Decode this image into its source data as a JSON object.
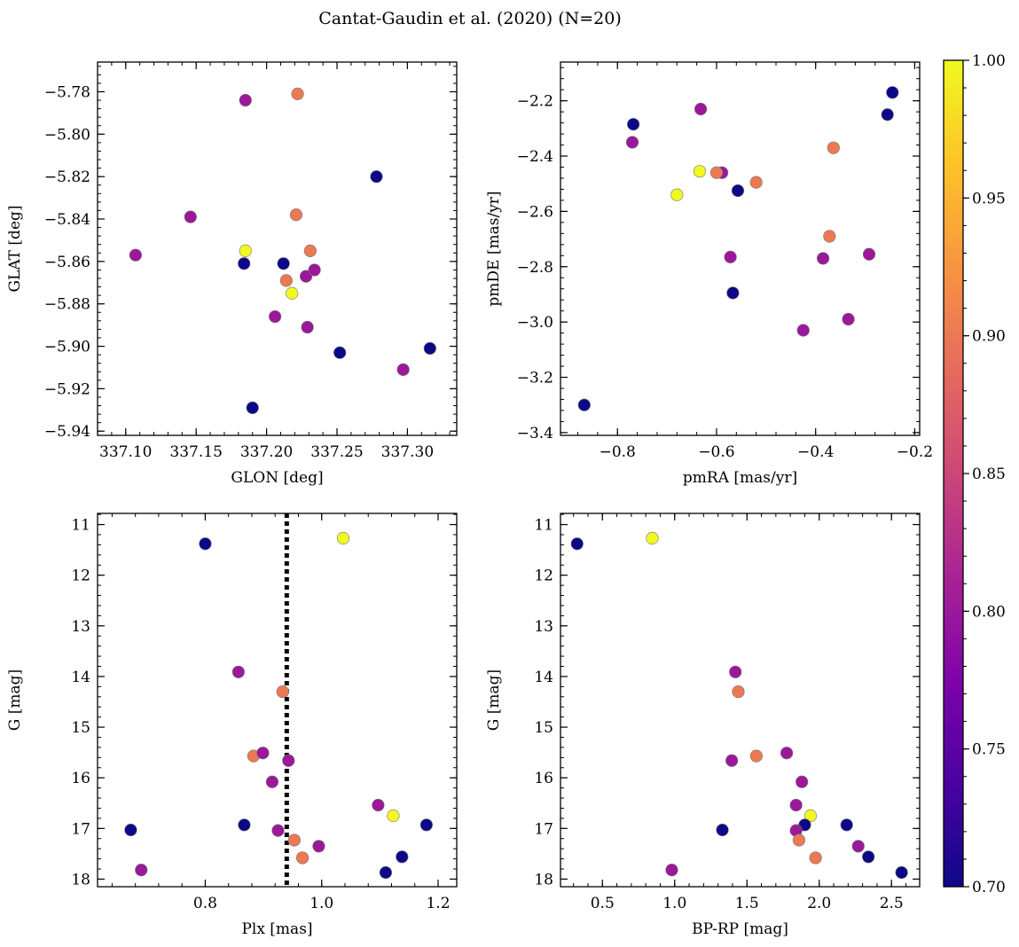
{
  "figure": {
    "suptitle": "Cantat-Gaudin et al. (2020) (N=20)"
  },
  "colorbar": {
    "cmap": "plasma",
    "vmin": 0.7,
    "vmax": 1.0,
    "ticks": [
      0.7,
      0.75,
      0.8,
      0.85,
      0.9,
      0.95,
      1.0
    ],
    "tick_labels": [
      "0.70",
      "0.75",
      "0.80",
      "0.85",
      "0.90",
      "0.95",
      "1.00"
    ]
  },
  "chart_data": [
    {
      "type": "scatter",
      "panel": "top-left",
      "xlabel": "GLON [deg]",
      "ylabel": "GLAT [deg]",
      "xlim": [
        337.08,
        337.335
      ],
      "ylim": [
        -5.942,
        -5.766
      ],
      "xticks": [
        337.1,
        337.15,
        337.2,
        337.25,
        337.3
      ],
      "xtick_labels": [
        "337.10",
        "337.15",
        "337.20",
        "337.25",
        "337.30"
      ],
      "yticks": [
        -5.94,
        -5.92,
        -5.9,
        -5.88,
        -5.86,
        -5.84,
        -5.82,
        -5.8,
        -5.78
      ],
      "ytick_labels": [
        "−5.94",
        "−5.92",
        "−5.90",
        "−5.88",
        "−5.86",
        "−5.84",
        "−5.82",
        "−5.80",
        "−5.78"
      ],
      "points": [
        {
          "x": 337.107,
          "y": -5.857,
          "c": 0.8
        },
        {
          "x": 337.146,
          "y": -5.839,
          "c": 0.8
        },
        {
          "x": 337.185,
          "y": -5.784,
          "c": 0.8
        },
        {
          "x": 337.185,
          "y": -5.855,
          "c": 1.0
        },
        {
          "x": 337.184,
          "y": -5.861,
          "c": 0.7
        },
        {
          "x": 337.19,
          "y": -5.929,
          "c": 0.7
        },
        {
          "x": 337.206,
          "y": -5.886,
          "c": 0.8
        },
        {
          "x": 337.212,
          "y": -5.861,
          "c": 0.7
        },
        {
          "x": 337.214,
          "y": -5.869,
          "c": 0.9
        },
        {
          "x": 337.218,
          "y": -5.875,
          "c": 1.0
        },
        {
          "x": 337.222,
          "y": -5.781,
          "c": 0.9
        },
        {
          "x": 337.221,
          "y": -5.838,
          "c": 0.9
        },
        {
          "x": 337.228,
          "y": -5.867,
          "c": 0.8
        },
        {
          "x": 337.231,
          "y": -5.855,
          "c": 0.9
        },
        {
          "x": 337.234,
          "y": -5.864,
          "c": 0.8
        },
        {
          "x": 337.229,
          "y": -5.891,
          "c": 0.8
        },
        {
          "x": 337.252,
          "y": -5.903,
          "c": 0.7
        },
        {
          "x": 337.278,
          "y": -5.82,
          "c": 0.7
        },
        {
          "x": 337.297,
          "y": -5.911,
          "c": 0.8
        },
        {
          "x": 337.316,
          "y": -5.901,
          "c": 0.7
        }
      ]
    },
    {
      "type": "scatter",
      "panel": "top-right",
      "xlabel": "pmRA [mas/yr]",
      "ylabel": "pmDE [mas/yr]",
      "xlim": [
        -0.915,
        -0.19
      ],
      "ylim": [
        -3.41,
        -2.06
      ],
      "xticks": [
        -0.8,
        -0.6,
        -0.4,
        -0.2
      ],
      "xtick_labels": [
        "−0.8",
        "−0.6",
        "−0.4",
        "−0.2"
      ],
      "yticks": [
        -3.4,
        -3.2,
        -3.0,
        -2.8,
        -2.6,
        -2.4,
        -2.2
      ],
      "ytick_labels": [
        "−3.4",
        "−3.2",
        "−3.0",
        "−2.8",
        "−2.6",
        "−2.4",
        "−2.2"
      ],
      "points": [
        {
          "x": -0.867,
          "y": -3.3,
          "c": 0.7
        },
        {
          "x": -0.768,
          "y": -2.285,
          "c": 0.7
        },
        {
          "x": -0.77,
          "y": -2.35,
          "c": 0.8
        },
        {
          "x": -0.68,
          "y": -2.54,
          "c": 1.0
        },
        {
          "x": -0.634,
          "y": -2.455,
          "c": 1.0
        },
        {
          "x": -0.632,
          "y": -2.23,
          "c": 0.8
        },
        {
          "x": -0.589,
          "y": -2.46,
          "c": 0.8
        },
        {
          "x": -0.6,
          "y": -2.46,
          "c": 0.9
        },
        {
          "x": -0.572,
          "y": -2.765,
          "c": 0.8
        },
        {
          "x": -0.567,
          "y": -2.895,
          "c": 0.7
        },
        {
          "x": -0.557,
          "y": -2.525,
          "c": 0.7
        },
        {
          "x": -0.52,
          "y": -2.495,
          "c": 0.9
        },
        {
          "x": -0.425,
          "y": -3.03,
          "c": 0.8
        },
        {
          "x": -0.385,
          "y": -2.77,
          "c": 0.8
        },
        {
          "x": -0.372,
          "y": -2.69,
          "c": 0.9
        },
        {
          "x": -0.364,
          "y": -2.37,
          "c": 0.9
        },
        {
          "x": -0.334,
          "y": -2.99,
          "c": 0.8
        },
        {
          "x": -0.292,
          "y": -2.755,
          "c": 0.8
        },
        {
          "x": -0.255,
          "y": -2.25,
          "c": 0.7
        },
        {
          "x": -0.245,
          "y": -2.17,
          "c": 0.7
        }
      ]
    },
    {
      "type": "scatter",
      "panel": "bottom-left",
      "xlabel": "Plx [mas]",
      "ylabel": "G [mag]",
      "xlim": [
        0.615,
        1.232
      ],
      "ylim": [
        18.15,
        10.78
      ],
      "y_inverted": true,
      "vline": {
        "x": 0.94,
        "style": "dotted",
        "color": "#000000"
      },
      "xticks": [
        0.8,
        1.0,
        1.2
      ],
      "xtick_labels": [
        "0.8",
        "1.0",
        "1.2"
      ],
      "yticks": [
        11,
        12,
        13,
        14,
        15,
        16,
        17,
        18
      ],
      "ytick_labels": [
        "11",
        "12",
        "13",
        "14",
        "15",
        "16",
        "17",
        "18"
      ],
      "points": [
        {
          "x": 0.8,
          "y": 11.38,
          "c": 0.7
        },
        {
          "x": 1.037,
          "y": 11.27,
          "c": 1.0
        },
        {
          "x": 0.857,
          "y": 13.91,
          "c": 0.8
        },
        {
          "x": 0.933,
          "y": 14.3,
          "c": 0.9
        },
        {
          "x": 0.883,
          "y": 15.57,
          "c": 0.9
        },
        {
          "x": 0.899,
          "y": 15.51,
          "c": 0.8
        },
        {
          "x": 0.943,
          "y": 15.66,
          "c": 0.8
        },
        {
          "x": 0.915,
          "y": 16.08,
          "c": 0.8
        },
        {
          "x": 1.097,
          "y": 16.54,
          "c": 0.8
        },
        {
          "x": 1.123,
          "y": 16.75,
          "c": 1.0
        },
        {
          "x": 0.672,
          "y": 17.03,
          "c": 0.7
        },
        {
          "x": 0.867,
          "y": 16.93,
          "c": 0.7
        },
        {
          "x": 0.925,
          "y": 17.04,
          "c": 0.8
        },
        {
          "x": 0.953,
          "y": 17.23,
          "c": 0.9
        },
        {
          "x": 0.995,
          "y": 17.35,
          "c": 0.8
        },
        {
          "x": 0.967,
          "y": 17.58,
          "c": 0.9
        },
        {
          "x": 1.138,
          "y": 17.56,
          "c": 0.7
        },
        {
          "x": 1.18,
          "y": 16.93,
          "c": 0.7
        },
        {
          "x": 0.69,
          "y": 17.82,
          "c": 0.8
        },
        {
          "x": 1.11,
          "y": 17.87,
          "c": 0.7
        }
      ]
    },
    {
      "type": "scatter",
      "panel": "bottom-right",
      "xlabel": "BP-RP [mag]",
      "ylabel": "G [mag]",
      "xlim": [
        0.21,
        2.695
      ],
      "ylim": [
        18.15,
        10.78
      ],
      "y_inverted": true,
      "xticks": [
        0.5,
        1.0,
        1.5,
        2.0,
        2.5
      ],
      "xtick_labels": [
        "0.5",
        "1.0",
        "1.5",
        "2.0",
        "2.5"
      ],
      "yticks": [
        11,
        12,
        13,
        14,
        15,
        16,
        17,
        18
      ],
      "ytick_labels": [
        "11",
        "12",
        "13",
        "14",
        "15",
        "16",
        "17",
        "18"
      ],
      "points": [
        {
          "x": 0.325,
          "y": 11.38,
          "c": 0.7
        },
        {
          "x": 0.845,
          "y": 11.27,
          "c": 1.0
        },
        {
          "x": 1.42,
          "y": 13.91,
          "c": 0.8
        },
        {
          "x": 1.44,
          "y": 14.3,
          "c": 0.9
        },
        {
          "x": 1.395,
          "y": 15.66,
          "c": 0.8
        },
        {
          "x": 1.565,
          "y": 15.57,
          "c": 0.9
        },
        {
          "x": 1.775,
          "y": 15.51,
          "c": 0.8
        },
        {
          "x": 1.88,
          "y": 16.08,
          "c": 0.8
        },
        {
          "x": 1.84,
          "y": 16.54,
          "c": 0.8
        },
        {
          "x": 1.94,
          "y": 16.75,
          "c": 1.0
        },
        {
          "x": 1.9,
          "y": 16.93,
          "c": 0.7
        },
        {
          "x": 1.84,
          "y": 17.04,
          "c": 0.8
        },
        {
          "x": 1.33,
          "y": 17.03,
          "c": 0.7
        },
        {
          "x": 1.86,
          "y": 17.23,
          "c": 0.9
        },
        {
          "x": 1.975,
          "y": 17.58,
          "c": 0.9
        },
        {
          "x": 2.19,
          "y": 16.93,
          "c": 0.7
        },
        {
          "x": 2.27,
          "y": 17.35,
          "c": 0.8
        },
        {
          "x": 2.34,
          "y": 17.56,
          "c": 0.7
        },
        {
          "x": 2.57,
          "y": 17.87,
          "c": 0.7
        },
        {
          "x": 0.98,
          "y": 17.82,
          "c": 0.8
        }
      ]
    }
  ]
}
